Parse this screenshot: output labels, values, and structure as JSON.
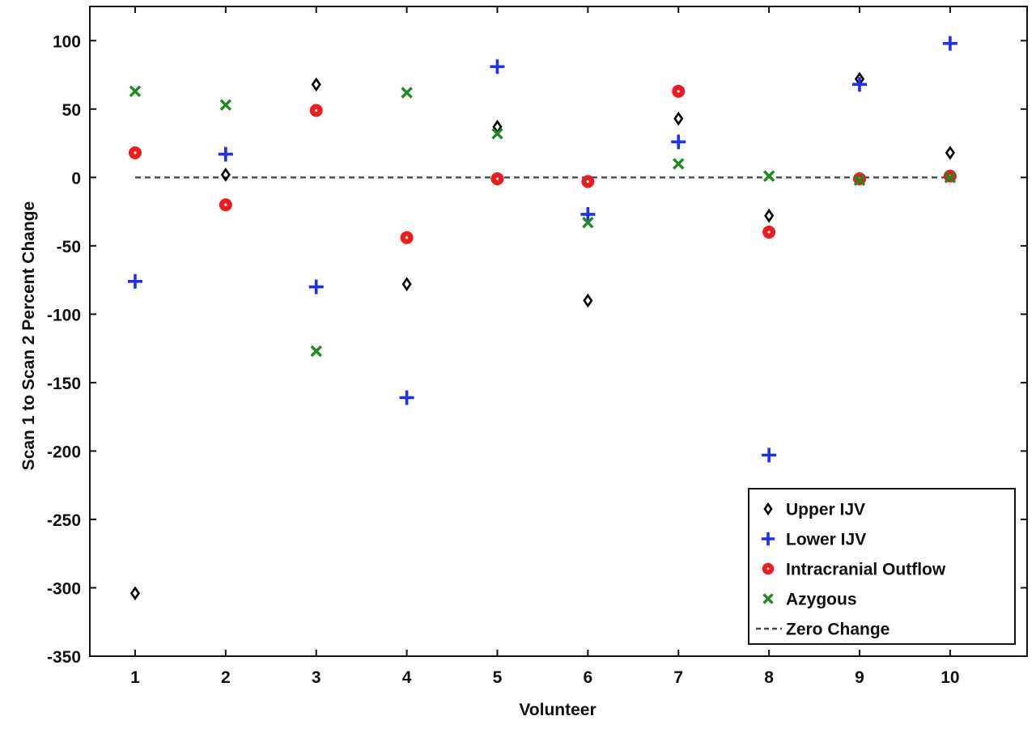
{
  "chart_data": {
    "type": "scatter",
    "title": "",
    "xlabel": "Volunteer",
    "ylabel": "Scan 1 to Scan 2 Percent Change",
    "x": [
      1,
      2,
      3,
      4,
      5,
      6,
      7,
      8,
      9,
      10
    ],
    "x_tick_labels": [
      "1",
      "2",
      "3",
      "4",
      "5",
      "6",
      "7",
      "8",
      "9",
      "10"
    ],
    "xlim": [
      0.5,
      10.85
    ],
    "ylim": [
      -350,
      125
    ],
    "y_ticks": [
      100,
      50,
      0,
      -50,
      -100,
      -150,
      -200,
      -250,
      -300,
      -350
    ],
    "y_tick_labels": [
      "100",
      "50",
      "0",
      "-50",
      "-100",
      "-150",
      "-200",
      "-250",
      "-300",
      "-350"
    ],
    "grid": false,
    "legend_position": "bottom-right",
    "series": [
      {
        "name": "Upper IJV",
        "marker": "diamond-icon",
        "color": "#000000",
        "values": [
          -304,
          2,
          68,
          -78,
          37,
          -90,
          43,
          -28,
          72,
          18
        ]
      },
      {
        "name": "Lower IJV",
        "marker": "plus-icon",
        "color": "#1f2ff0",
        "values": [
          -76,
          17,
          -80,
          -161,
          81,
          -27,
          26,
          -203,
          68,
          98
        ]
      },
      {
        "name": "Intracranial Outflow",
        "marker": "circle-icon",
        "color": "#ee1c1c",
        "values": [
          18,
          -20,
          49,
          -44,
          -1,
          -3,
          63,
          -40,
          -1,
          1
        ]
      },
      {
        "name": "Azygous",
        "marker": "x-icon",
        "color": "#1f8a1f",
        "values": [
          63,
          53,
          -127,
          62,
          32,
          -33,
          10,
          1,
          -2,
          0
        ]
      }
    ],
    "reference_line": {
      "name": "Zero Change",
      "y": 0,
      "x_range": [
        1,
        10
      ],
      "style": "dashed",
      "color": "#3e4a55"
    }
  }
}
